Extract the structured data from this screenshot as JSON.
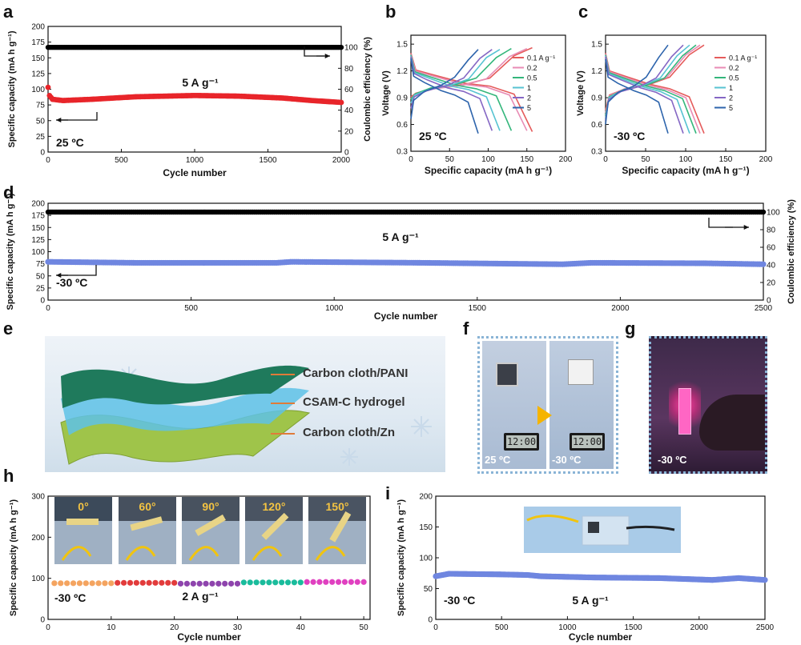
{
  "panel_labels": {
    "a": "a",
    "b": "b",
    "c": "c",
    "d": "d",
    "e": "e",
    "f": "f",
    "g": "g",
    "h": "h",
    "i": "i"
  },
  "chart_data": [
    {
      "id": "a",
      "type": "scatter",
      "xlabel": "Cycle number",
      "ylabel": "Specific capacity (mA h g⁻¹)",
      "y2label": "Coulombic efficiency (%)",
      "xlim": [
        0,
        2000
      ],
      "ylim": [
        0,
        200
      ],
      "y2lim": [
        0,
        120
      ],
      "xticks": [
        0,
        500,
        1000,
        1500,
        2000
      ],
      "yticks": [
        0,
        25,
        50,
        75,
        100,
        125,
        150,
        175,
        200
      ],
      "y2ticks": [
        0,
        20,
        40,
        60,
        80,
        100
      ],
      "annotations": {
        "rate": "5 A g⁻¹",
        "temp": "25 ºC"
      },
      "series": [
        {
          "axis": "y2",
          "color": "#000000",
          "x": [
            0,
            2000
          ],
          "y": [
            100,
            100
          ]
        },
        {
          "axis": "y",
          "color": "#e8252a",
          "x": [
            0,
            10,
            30,
            100,
            300,
            600,
            1000,
            1300,
            1600,
            1800,
            2000
          ],
          "y": [
            103,
            90,
            84,
            82,
            84,
            88,
            90,
            89,
            86,
            82,
            79
          ]
        }
      ]
    },
    {
      "id": "b",
      "type": "line",
      "xlabel": "Specific capacity (mA h g⁻¹)",
      "ylabel": "Voltage (V)",
      "xlim": [
        0,
        200
      ],
      "ylim": [
        0.3,
        1.6
      ],
      "xticks": [
        0,
        50,
        100,
        150,
        200
      ],
      "yticks": [
        0.3,
        0.6,
        0.9,
        1.2,
        1.5
      ],
      "annotations": {
        "temp": "25 ºC"
      },
      "legend": [
        "0.1 A g⁻¹",
        "0.2",
        "0.5",
        "1",
        "2",
        "5"
      ],
      "series": [
        {
          "name": "0.1 A g⁻¹",
          "color": "#e55b5b",
          "cap": 157,
          "charge": [
            1.46,
            1.37,
            1.12,
            1.05,
            1.01,
            0.95,
            0.91
          ],
          "discharge": [
            1.4,
            1.21,
            1.15,
            1.06,
            1.03,
            0.94,
            0.52
          ]
        },
        {
          "name": "0.2",
          "color": "#e88bb4",
          "cap": 150,
          "charge": [
            1.45,
            1.36,
            1.11,
            1.04,
            1.0,
            0.94,
            0.89
          ],
          "discharge": [
            1.39,
            1.2,
            1.14,
            1.05,
            1.02,
            0.93,
            0.53
          ]
        },
        {
          "name": "0.5",
          "color": "#33b67b",
          "cap": 130,
          "charge": [
            1.45,
            1.35,
            1.12,
            1.05,
            1.01,
            0.94,
            0.88
          ],
          "discharge": [
            1.38,
            1.19,
            1.13,
            1.04,
            1.0,
            0.92,
            0.53
          ]
        },
        {
          "name": "1",
          "color": "#57c3d2",
          "cap": 115,
          "charge": [
            1.44,
            1.35,
            1.11,
            1.04,
            0.99,
            0.93,
            0.84
          ],
          "discharge": [
            1.37,
            1.18,
            1.12,
            1.03,
            0.99,
            0.91,
            0.53
          ]
        },
        {
          "name": "2",
          "color": "#8567c4",
          "cap": 105,
          "charge": [
            1.44,
            1.34,
            1.12,
            1.04,
            0.98,
            0.91,
            0.78
          ],
          "discharge": [
            1.36,
            1.17,
            1.1,
            1.01,
            0.97,
            0.89,
            0.53
          ]
        },
        {
          "name": "5",
          "color": "#2d64ac",
          "cap": 87,
          "charge": [
            1.44,
            1.32,
            1.13,
            1.04,
            0.97,
            0.87,
            0.66
          ],
          "discharge": [
            1.34,
            1.14,
            1.07,
            0.98,
            0.93,
            0.85,
            0.5
          ]
        }
      ]
    },
    {
      "id": "c",
      "type": "line",
      "xlabel": "Specific capacity (mA h g⁻¹)",
      "ylabel": "Voltage (V)",
      "xlim": [
        0,
        200
      ],
      "ylim": [
        0.3,
        1.6
      ],
      "xticks": [
        0,
        50,
        100,
        150,
        200
      ],
      "yticks": [
        0.3,
        0.6,
        0.9,
        1.2,
        1.5
      ],
      "annotations": {
        "temp": "-30 ºC"
      },
      "legend": [
        "0.1 A g⁻¹",
        "0.2",
        "0.5",
        "1",
        "2",
        "5"
      ],
      "series": [
        {
          "name": "0.1 A g⁻¹",
          "color": "#e55b5b",
          "cap": 123,
          "charge": [
            1.49,
            1.38,
            1.13,
            1.05,
            1.0,
            0.93,
            0.76
          ],
          "discharge": [
            1.4,
            1.2,
            1.14,
            1.05,
            1.0,
            0.91,
            0.5
          ]
        },
        {
          "name": "0.2",
          "color": "#e88bb4",
          "cap": 118,
          "charge": [
            1.49,
            1.38,
            1.13,
            1.05,
            1.0,
            0.92,
            0.73
          ],
          "discharge": [
            1.39,
            1.19,
            1.13,
            1.04,
            0.99,
            0.9,
            0.5
          ]
        },
        {
          "name": "0.5",
          "color": "#33b67b",
          "cap": 113,
          "charge": [
            1.49,
            1.37,
            1.12,
            1.04,
            0.99,
            0.91,
            0.7
          ],
          "discharge": [
            1.38,
            1.18,
            1.12,
            1.03,
            0.98,
            0.89,
            0.5
          ]
        },
        {
          "name": "1",
          "color": "#57c3d2",
          "cap": 105,
          "charge": [
            1.49,
            1.37,
            1.12,
            1.04,
            0.98,
            0.9,
            0.67
          ],
          "discharge": [
            1.37,
            1.17,
            1.11,
            1.02,
            0.97,
            0.88,
            0.5
          ]
        },
        {
          "name": "2",
          "color": "#8567c4",
          "cap": 97,
          "charge": [
            1.49,
            1.36,
            1.12,
            1.03,
            0.97,
            0.88,
            0.64
          ],
          "discharge": [
            1.36,
            1.16,
            1.1,
            1.01,
            0.96,
            0.87,
            0.5
          ]
        },
        {
          "name": "5",
          "color": "#2d64ac",
          "cap": 78,
          "charge": [
            1.49,
            1.35,
            1.13,
            1.03,
            0.96,
            0.85,
            0.6
          ],
          "discharge": [
            1.33,
            1.13,
            1.06,
            0.98,
            0.93,
            0.85,
            0.5
          ]
        }
      ]
    },
    {
      "id": "d",
      "type": "scatter",
      "xlabel": "Cycle number",
      "ylabel": "Specific capacity (mA h g⁻¹)",
      "y2label": "Coulombic efficiency (%)",
      "xlim": [
        0,
        2500
      ],
      "ylim": [
        0,
        200
      ],
      "y2lim": [
        0,
        110
      ],
      "xticks": [
        0,
        500,
        1000,
        1500,
        2000,
        2500
      ],
      "yticks": [
        0,
        25,
        50,
        75,
        100,
        125,
        150,
        175,
        200
      ],
      "y2ticks": [
        0,
        20,
        40,
        60,
        80,
        100
      ],
      "annotations": {
        "rate": "5 A g⁻¹",
        "temp": "-30 ºC"
      },
      "series": [
        {
          "axis": "y2",
          "color": "#000000",
          "x": [
            0,
            2500
          ],
          "y": [
            100,
            100
          ]
        },
        {
          "axis": "y",
          "color": "#6f86e0",
          "x": [
            0,
            300,
            800,
            850,
            1300,
            1800,
            1900,
            2300,
            2500
          ],
          "y": [
            79,
            77,
            77,
            79,
            77,
            74,
            77,
            76,
            74
          ]
        }
      ]
    },
    {
      "id": "h",
      "type": "scatter",
      "xlabel": "Cycle number",
      "ylabel": "Specific capacity (mA h g⁻¹)",
      "xlim": [
        0,
        51
      ],
      "ylim": [
        0,
        300
      ],
      "xticks": [
        0,
        10,
        20,
        30,
        40,
        50
      ],
      "yticks": [
        0,
        100,
        200,
        300
      ],
      "annotations": {
        "rate": "2 A g⁻¹",
        "temp": "-30 ºC"
      },
      "angles": [
        "0°",
        "60°",
        "90°",
        "120°",
        "150°"
      ],
      "series": [
        {
          "color": "#f4a460",
          "x": [
            1,
            2,
            3,
            4,
            5,
            6,
            7,
            8,
            9,
            10
          ],
          "y": [
            88,
            88,
            88,
            88,
            88,
            88,
            88,
            88,
            88,
            88
          ]
        },
        {
          "color": "#e23b3b",
          "x": [
            11,
            12,
            13,
            14,
            15,
            16,
            17,
            18,
            19,
            20
          ],
          "y": [
            89,
            89,
            89,
            89,
            89,
            89,
            89,
            89,
            89,
            89
          ]
        },
        {
          "color": "#8e44ad",
          "x": [
            21,
            22,
            23,
            24,
            25,
            26,
            27,
            28,
            29,
            30
          ],
          "y": [
            87,
            87,
            87,
            87,
            87,
            87,
            87,
            87,
            87,
            87
          ]
        },
        {
          "color": "#1abc9c",
          "x": [
            31,
            32,
            33,
            34,
            35,
            36,
            37,
            38,
            39,
            40
          ],
          "y": [
            90,
            90,
            90,
            90,
            90,
            90,
            90,
            90,
            90,
            90
          ]
        },
        {
          "color": "#e040c0",
          "x": [
            41,
            42,
            43,
            44,
            45,
            46,
            47,
            48,
            49,
            50
          ],
          "y": [
            91,
            91,
            91,
            91,
            91,
            91,
            91,
            91,
            91,
            91
          ]
        }
      ]
    },
    {
      "id": "i",
      "type": "scatter",
      "xlabel": "Cycle number",
      "ylabel": "Specific capacity (mA h g⁻¹)",
      "xlim": [
        0,
        2500
      ],
      "ylim": [
        0,
        200
      ],
      "xticks": [
        0,
        500,
        1000,
        1500,
        2000,
        2500
      ],
      "yticks": [
        0,
        50,
        100,
        150,
        200
      ],
      "annotations": {
        "rate": "5 A g⁻¹",
        "temp": "-30 ºC"
      },
      "series": [
        {
          "color": "#6f86e0",
          "x": [
            0,
            100,
            500,
            700,
            800,
            1200,
            1700,
            2100,
            2300,
            2500
          ],
          "y": [
            70,
            74,
            73,
            72,
            70,
            68,
            67,
            64,
            67,
            64
          ]
        }
      ]
    }
  ],
  "panel_e": {
    "labels": [
      "Carbon cloth/PANI",
      "CSAM-C hydrogel",
      "Carbon cloth/Zn"
    ]
  },
  "panel_f": {
    "left_temp": "25 ºC",
    "right_temp": "-30 ºC",
    "display": "12:00"
  },
  "panel_g": {
    "temp": "-30 ºC"
  }
}
